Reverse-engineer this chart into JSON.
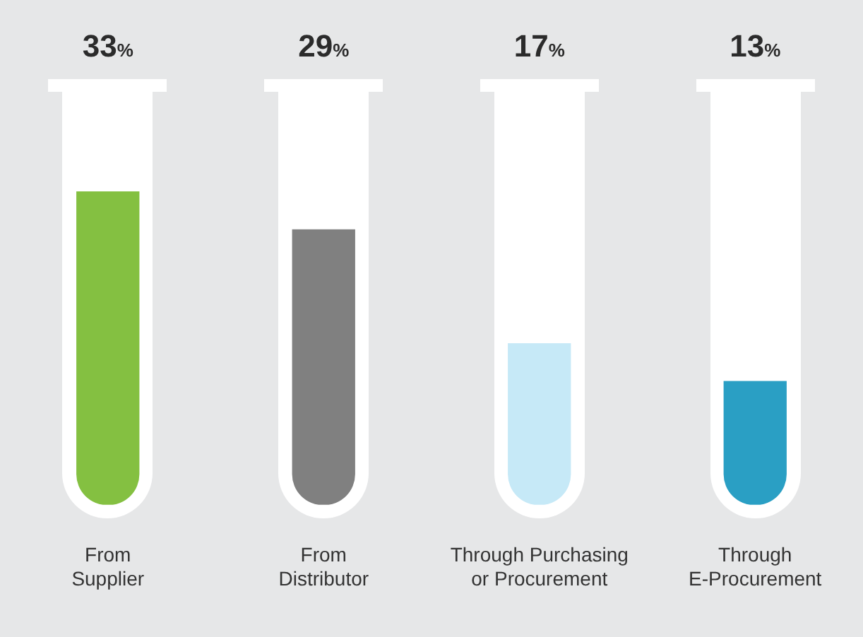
{
  "chart_data": {
    "type": "bar",
    "categories": [
      "From Supplier",
      "From Distributor",
      "Through Purchasing or Procurement",
      "Through E-Procurement"
    ],
    "values": [
      33,
      29,
      17,
      13
    ],
    "colors": [
      "#84c041",
      "#808080",
      "#c6e9f7",
      "#2a9fc4"
    ],
    "value_labels": [
      "33%",
      "29%",
      "17%",
      "13%"
    ],
    "grid": false,
    "legend": false,
    "tick_labels": "x"
  }
}
